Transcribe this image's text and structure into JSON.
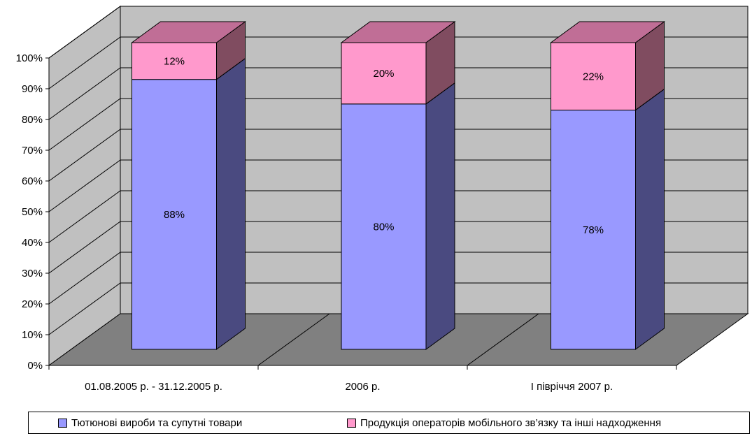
{
  "chart_data": {
    "type": "bar",
    "stacked": true,
    "percent_stacked": true,
    "three_d": true,
    "categories": [
      "01.08.2005 р. - 31.12.2005 р.",
      "2006 р.",
      "І півріччя 2007 р."
    ],
    "series": [
      {
        "name": "Тютюнові вироби та супутні товари",
        "values": [
          88,
          80,
          78
        ],
        "labels": [
          "88%",
          "80%",
          "78%"
        ],
        "color": "#9999ff",
        "side_color": "#4a4a80"
      },
      {
        "name": "Продукція операторів мобільного зв’язку та інші надходження",
        "values": [
          12,
          20,
          22
        ],
        "labels": [
          "12%",
          "20%",
          "22%"
        ],
        "color": "#ff99cc",
        "top_color": "#c06e96",
        "side_color": "#804c60"
      }
    ],
    "y_ticks": [
      "0%",
      "10%",
      "20%",
      "30%",
      "40%",
      "50%",
      "60%",
      "70%",
      "80%",
      "90%",
      "100%"
    ],
    "ylim": [
      0,
      100
    ],
    "grid": true,
    "legend_position": "bottom",
    "colors": {
      "wall": "#c0c0c0",
      "floor": "#808080",
      "gridline": "#000000"
    }
  }
}
